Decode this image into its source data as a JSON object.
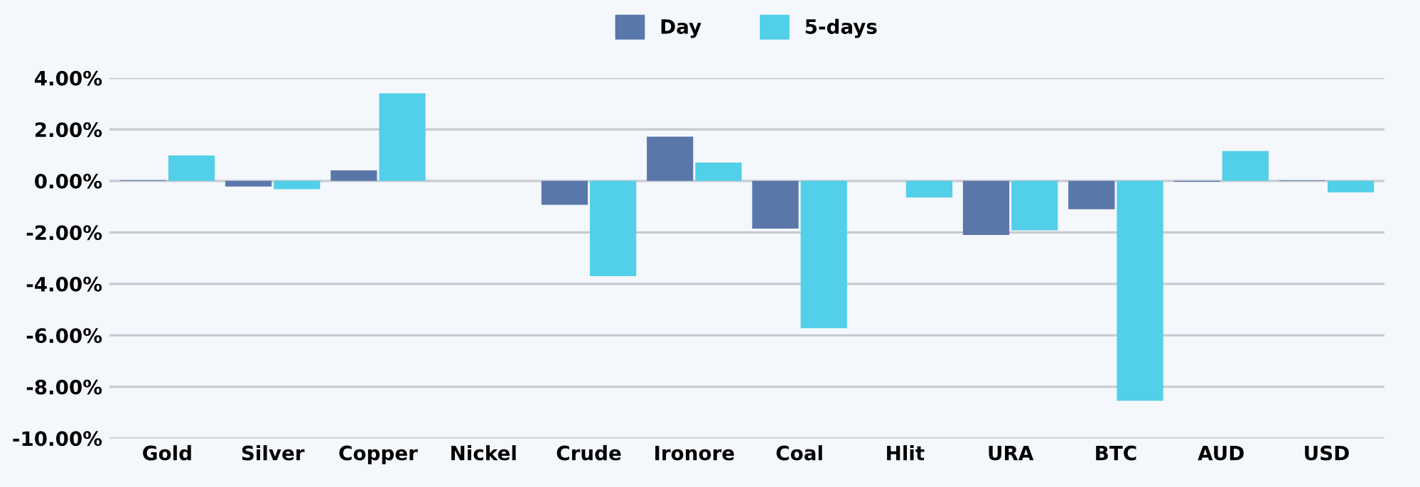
{
  "chart_data": {
    "type": "bar",
    "categories": [
      "Gold",
      "Silver",
      "Copper",
      "Nickel",
      "Crude",
      "Ironore",
      "Coal",
      "Hlit",
      "URA",
      "BTC",
      "AUD",
      "USD"
    ],
    "series": [
      {
        "name": "Day",
        "color": "#5a77aa",
        "values": [
          0.03,
          -0.22,
          0.41,
          0,
          -0.93,
          1.72,
          -1.85,
          0,
          -2.1,
          -1.1,
          -0.03,
          0.02
        ]
      },
      {
        "name": "5-days",
        "color": "#52cfe9",
        "values": [
          0.99,
          -0.32,
          3.4,
          0,
          -3.7,
          0.71,
          -5.72,
          -0.65,
          -1.92,
          -8.54,
          1.16,
          -0.45
        ]
      }
    ],
    "ylim": [
      -10,
      4
    ],
    "yticks": [
      {
        "value": 4,
        "label": "4.00%"
      },
      {
        "value": 2,
        "label": "2.00%"
      },
      {
        "value": 0,
        "label": "0.00%"
      },
      {
        "value": -2,
        "label": "-2.00%"
      },
      {
        "value": -4,
        "label": "-4.00%"
      },
      {
        "value": -6,
        "label": "-6.00%"
      },
      {
        "value": -8,
        "label": "-8.00%"
      },
      {
        "value": -10,
        "label": "-10.00%"
      }
    ],
    "grid": "y",
    "legend": "top"
  }
}
